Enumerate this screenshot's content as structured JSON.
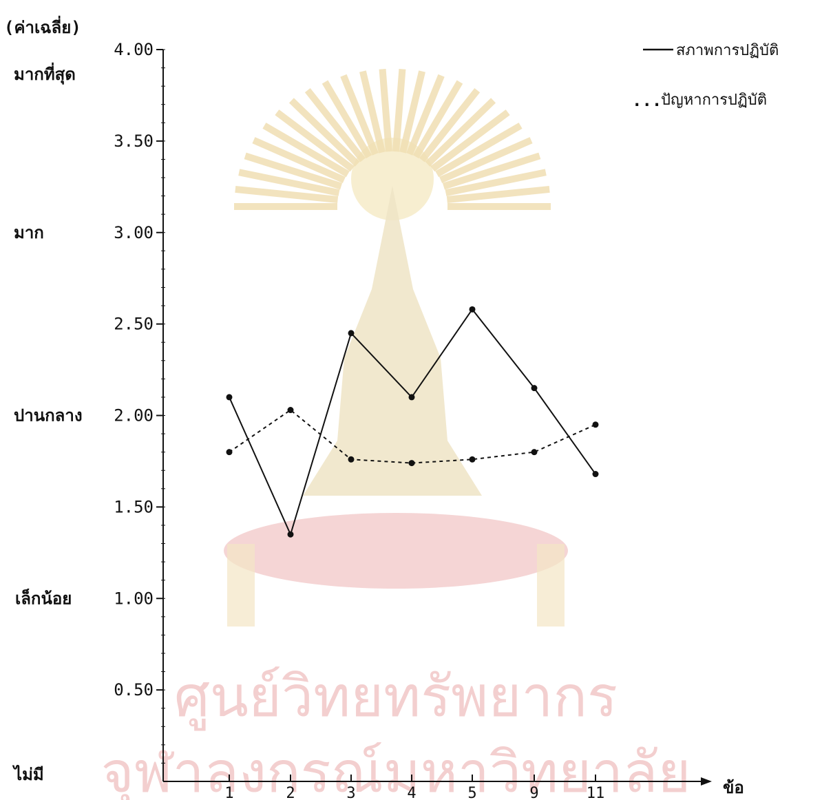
{
  "chart_data": {
    "type": "line",
    "ylabel": "(ค่าเฉลี่ย)",
    "xlabel": "ข้อ",
    "ylim": [
      0,
      4
    ],
    "grid": false,
    "legend_position": "top-right",
    "categories": [
      "1",
      "2",
      "3",
      "4",
      "5",
      "9",
      "11"
    ],
    "y_ticks": [
      "4.00",
      "3.50",
      "3.00",
      "2.50",
      "2.00",
      "1.50",
      "1.00",
      "0.50"
    ],
    "y_tick_values": [
      4.0,
      3.5,
      3.0,
      2.5,
      2.0,
      1.5,
      1.0,
      0.5
    ],
    "level_labels": [
      {
        "text": "มากที่สุด",
        "value": 4.0
      },
      {
        "text": "มาก",
        "value": 3.0
      },
      {
        "text": "ปานกลาง",
        "value": 2.0
      },
      {
        "text": "เล็กน้อย",
        "value": 1.0
      },
      {
        "text": "ไม่มี",
        "value": 0.0
      }
    ],
    "series": [
      {
        "name": "สภาพการปฏิบัติ",
        "style": "solid",
        "values": [
          2.1,
          1.35,
          2.45,
          2.1,
          2.58,
          2.15,
          1.68
        ]
      },
      {
        "name": "ปัญหาการปฏิบัติ",
        "style": "dotted",
        "values": [
          1.8,
          2.03,
          1.76,
          1.74,
          1.76,
          1.8,
          1.95
        ]
      }
    ],
    "legend": [
      {
        "marker": "——",
        "label": "สภาพการปฏิบัติ"
      },
      {
        "marker": "...",
        "label": "ปัญหาการปฏิบัติ"
      }
    ]
  },
  "watermark": {
    "line1": "ศูนย์วิทยทรัพยากร",
    "line2": "จุฬาลงกรณ์มหาวิทยาลัย"
  },
  "colors": {
    "ink": "#111111",
    "watermark_red": "#f3c9c9",
    "watermark_gold": "#f1e6c9"
  }
}
